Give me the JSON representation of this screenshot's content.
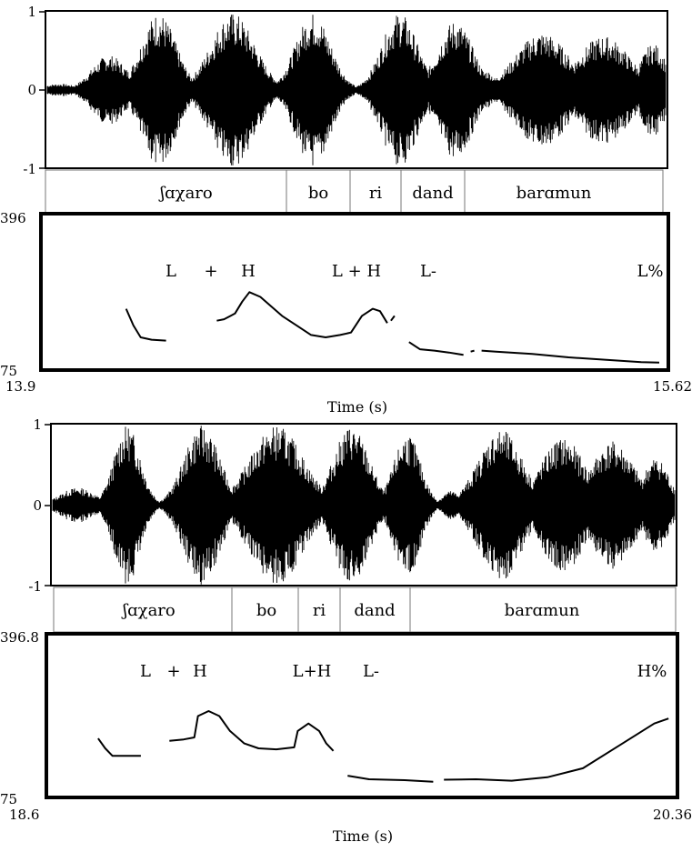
{
  "chart_data": [
    {
      "type": "line",
      "panel": "waveform",
      "ylim": [
        -1,
        1
      ],
      "ticks": {
        "top": "1",
        "mid": "0",
        "bottom": "-1"
      },
      "segments": [
        "ʃɑχaro",
        "bo",
        "ri",
        "dand",
        "barɑmun"
      ]
    },
    {
      "type": "line",
      "panel": "pitch",
      "ylim": [
        75,
        396
      ],
      "yticks": {
        "max": "396",
        "min": "75"
      },
      "xlim": [
        13.9,
        15.62
      ],
      "xticks": {
        "start": "13.9",
        "end": "15.62"
      },
      "xlabel": "Time (s)",
      "tones": [
        "L",
        "+",
        "H",
        "L + H",
        "L-",
        "L%"
      ],
      "contour": [
        [
          [
            14.13,
            200
          ],
          [
            14.15,
            165
          ],
          [
            14.17,
            140
          ],
          [
            14.2,
            135
          ],
          [
            14.24,
            133
          ]
        ],
        [
          [
            14.38,
            175
          ],
          [
            14.4,
            178
          ],
          [
            14.43,
            190
          ],
          [
            14.45,
            215
          ],
          [
            14.47,
            235
          ],
          [
            14.5,
            225
          ],
          [
            14.53,
            205
          ],
          [
            14.56,
            185
          ],
          [
            14.6,
            165
          ],
          [
            14.64,
            145
          ],
          [
            14.68,
            140
          ],
          [
            14.72,
            145
          ],
          [
            14.75,
            150
          ],
          [
            14.78,
            185
          ],
          [
            14.81,
            200
          ],
          [
            14.83,
            195
          ],
          [
            14.85,
            170
          ]
        ],
        [
          [
            14.86,
            175
          ],
          [
            14.87,
            185
          ]
        ],
        [
          [
            14.91,
            130
          ],
          [
            14.94,
            115
          ],
          [
            14.98,
            112
          ],
          [
            15.02,
            108
          ],
          [
            15.06,
            103
          ]
        ],
        [
          [
            15.08,
            110
          ],
          [
            15.09,
            112
          ]
        ],
        [
          [
            15.11,
            112
          ],
          [
            15.15,
            110
          ],
          [
            15.25,
            105
          ],
          [
            15.35,
            98
          ],
          [
            15.45,
            93
          ],
          [
            15.55,
            88
          ],
          [
            15.6,
            87
          ]
        ]
      ]
    },
    {
      "type": "line",
      "panel": "waveform",
      "ylim": [
        -1,
        1
      ],
      "ticks": {
        "top": "1",
        "mid": "0",
        "bottom": "-1"
      },
      "segments": [
        "ʃɑχaro",
        "bo",
        "ri",
        "dand",
        "barɑmun"
      ]
    },
    {
      "type": "line",
      "panel": "pitch",
      "ylim": [
        75,
        396.8
      ],
      "yticks": {
        "max": "396.8",
        "min": "75"
      },
      "xlim": [
        18.6,
        20.36
      ],
      "xticks": {
        "start": "18.6",
        "end": "20.36"
      },
      "xlabel": "Time (s)",
      "tones": [
        "L",
        "+",
        "H",
        "L+H",
        "L-",
        "H%"
      ],
      "contour": [
        [
          [
            18.74,
            190
          ],
          [
            18.76,
            170
          ],
          [
            18.78,
            155
          ],
          [
            18.86,
            155
          ]
        ],
        [
          [
            18.94,
            185
          ],
          [
            18.98,
            188
          ],
          [
            19.01,
            192
          ],
          [
            19.02,
            235
          ],
          [
            19.05,
            245
          ],
          [
            19.08,
            235
          ],
          [
            19.11,
            205
          ],
          [
            19.15,
            180
          ],
          [
            19.19,
            170
          ],
          [
            19.24,
            168
          ],
          [
            19.29,
            172
          ],
          [
            19.3,
            205
          ],
          [
            19.33,
            220
          ],
          [
            19.36,
            205
          ],
          [
            19.38,
            180
          ],
          [
            19.4,
            165
          ]
        ],
        [
          [
            19.44,
            115
          ],
          [
            19.5,
            108
          ],
          [
            19.6,
            106
          ],
          [
            19.68,
            103
          ]
        ],
        [
          [
            19.71,
            107
          ],
          [
            19.8,
            108
          ],
          [
            19.9,
            105
          ],
          [
            20.0,
            112
          ],
          [
            20.1,
            130
          ],
          [
            20.2,
            175
          ],
          [
            20.3,
            220
          ],
          [
            20.34,
            230
          ]
        ]
      ]
    }
  ]
}
